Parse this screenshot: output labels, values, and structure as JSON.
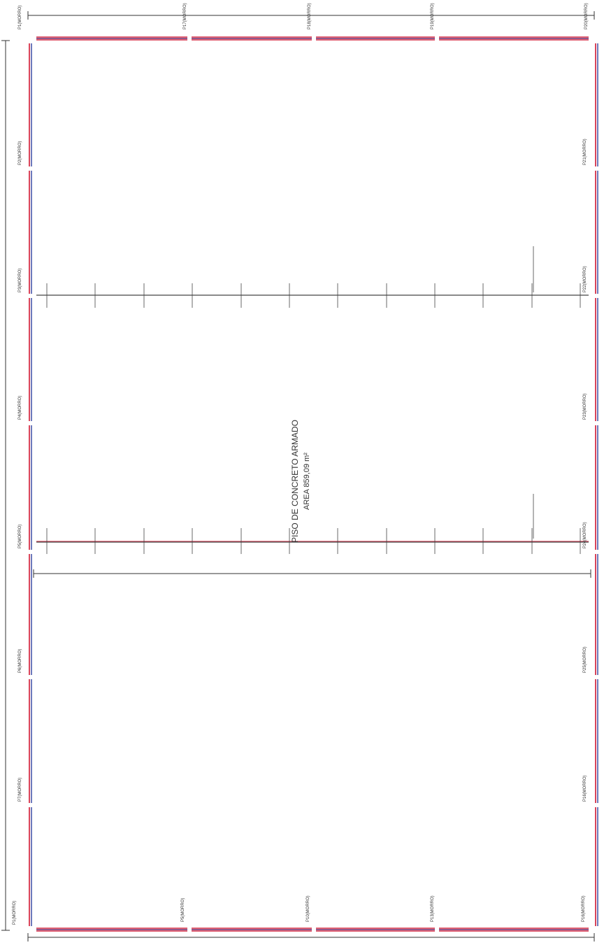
{
  "center_label": {
    "line1": "PISO DE CONCRETO ARMADO",
    "line2": "AREA 859,09 m²"
  },
  "colors": {
    "wall_red": "#d9445a",
    "wall_blue": "#3d4fa6",
    "ink": "#333333"
  },
  "columns": {
    "top": [
      "P1(MORRO)",
      "P17(MORRO)",
      "P18(MORRO)",
      "P19(MORRO)",
      "P20(MORRO)"
    ],
    "bottom": [
      "P1(MORRO)",
      "P5(MORRO)",
      "P10(MORRO)",
      "P13(MORRO)",
      "P16(MORRO)"
    ],
    "left": [
      "P2(MORRO)",
      "P3(MORRO)",
      "P4(MORRO)",
      "P5(MORRO)",
      "P6(MORRO)",
      "P7(MORRO)"
    ],
    "right": [
      "P21(MORRO)",
      "P22(MORRO)",
      "P23(MORRO)",
      "P24(MORRO)",
      "P25(MORRO)",
      "P16(MORRO)"
    ]
  }
}
